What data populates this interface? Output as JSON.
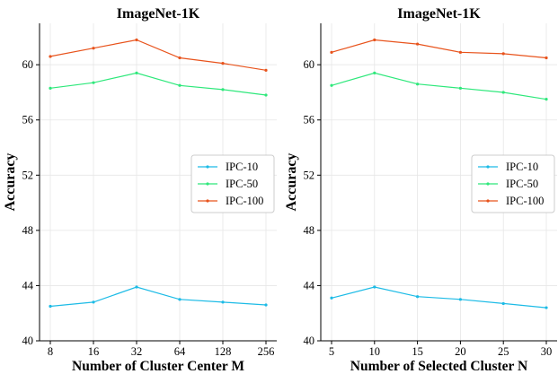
{
  "chart_data": [
    {
      "type": "line",
      "title": "ImageNet-1K",
      "xlabel": "Number of Cluster Center M",
      "ylabel": "Accuracy",
      "categories": [
        "8",
        "16",
        "32",
        "64",
        "128",
        "256"
      ],
      "ylim": [
        40,
        63
      ],
      "yticks": [
        40,
        44,
        48,
        52,
        56,
        60
      ],
      "grid": true,
      "legend_position": "center-right",
      "series": [
        {
          "name": "IPC-10",
          "color": "#1cbbe6",
          "values": [
            42.5,
            42.8,
            43.9,
            43.0,
            42.8,
            42.6
          ]
        },
        {
          "name": "IPC-50",
          "color": "#2ee87b",
          "values": [
            58.3,
            58.7,
            59.4,
            58.5,
            58.2,
            57.8
          ]
        },
        {
          "name": "IPC-100",
          "color": "#e8531c",
          "values": [
            60.6,
            61.2,
            61.8,
            60.5,
            60.1,
            59.6
          ]
        }
      ]
    },
    {
      "type": "line",
      "title": "ImageNet-1K",
      "xlabel": "Number of Selected Cluster N",
      "ylabel": "Accuracy",
      "categories": [
        "5",
        "10",
        "15",
        "20",
        "25",
        "30"
      ],
      "ylim": [
        40,
        63
      ],
      "yticks": [
        40,
        44,
        48,
        52,
        56,
        60
      ],
      "grid": true,
      "legend_position": "center-right",
      "series": [
        {
          "name": "IPC-10",
          "color": "#1cbbe6",
          "values": [
            43.1,
            43.9,
            43.2,
            43.0,
            42.7,
            42.4
          ]
        },
        {
          "name": "IPC-50",
          "color": "#2ee87b",
          "values": [
            58.5,
            59.4,
            58.6,
            58.3,
            58.0,
            57.5
          ]
        },
        {
          "name": "IPC-100",
          "color": "#e8531c",
          "values": [
            60.9,
            61.8,
            61.5,
            60.9,
            60.8,
            60.5
          ]
        }
      ]
    }
  ]
}
